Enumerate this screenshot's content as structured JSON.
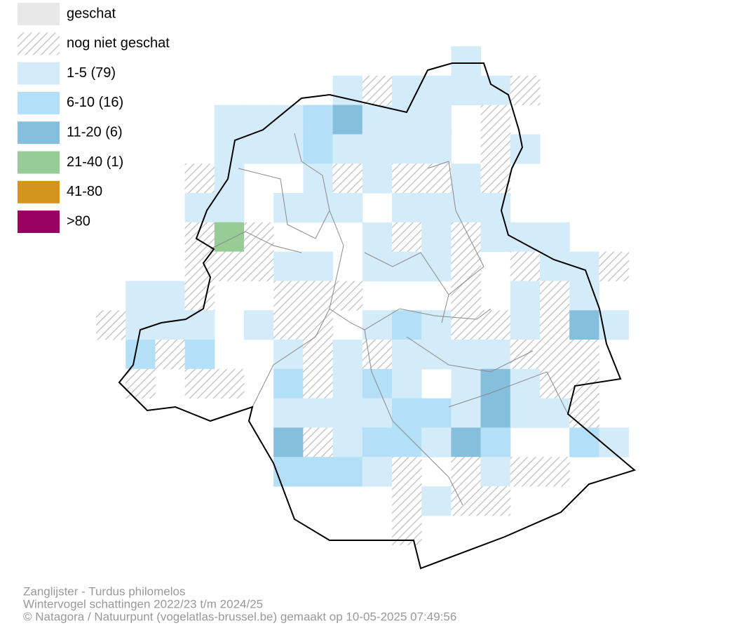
{
  "legend": [
    {
      "label": "geschat",
      "color": "#e8e8e8"
    },
    {
      "label": "nog niet geschat"
    },
    {
      "label": "1-5 (79)",
      "color": "#d4ebf9"
    },
    {
      "label": "6-10 (16)",
      "color": "#b3e0f7"
    },
    {
      "label": "11-20 (6)",
      "color": "#86bedd"
    },
    {
      "label": "21-40 (1)",
      "color": "#98cc96"
    },
    {
      "label": "41-80",
      "color": "#d4951f"
    },
    {
      "label": ">80",
      "color": "#9a0060"
    }
  ],
  "footer": {
    "lines": [
      "Zanglijster - Turdus philomelos",
      "Wintervogel schattingen 2022/23 t/m 2024/25",
      "© Natagora / Natuurpunt (vogelatlas-brussel.be) gemaakt op 10-05-2025 07:49:56"
    ]
  }
}
